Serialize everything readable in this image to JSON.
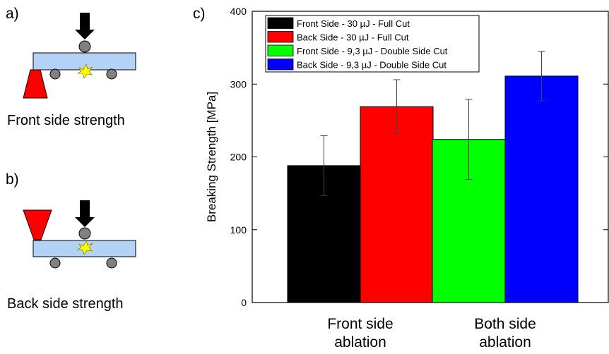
{
  "figure": {
    "panel_a": "a)",
    "panel_b": "b)",
    "panel_c": "c)",
    "caption_a": "Front side strength",
    "caption_b": "Back side strength"
  },
  "chart_data": {
    "type": "bar",
    "categories": [
      "Front side ablation",
      "Both side ablation"
    ],
    "y_label": "Breaking Strength [MPa]",
    "series": [
      {
        "name": "Front Side - 30 µJ - Full Cut",
        "color": "#000000",
        "values": [
          188,
          null
        ],
        "errors": [
          41,
          null
        ]
      },
      {
        "name": "Back Side - 30 µJ - Full Cut",
        "color": "#ff0000",
        "values": [
          269,
          null
        ],
        "errors": [
          37,
          null
        ]
      },
      {
        "name": "Front Side - 9,3 µJ - Double Side Cut",
        "color": "#00ff00",
        "values": [
          null,
          224
        ],
        "errors": [
          null,
          55
        ]
      },
      {
        "name": "Back Side - 9,3 µJ - Double Side Cut",
        "color": "#0000ff",
        "values": [
          null,
          311
        ],
        "errors": [
          null,
          34
        ]
      }
    ],
    "ylim": [
      0,
      400
    ],
    "yticks": [
      0,
      100,
      200,
      300,
      400
    ],
    "legend": "upper left"
  }
}
